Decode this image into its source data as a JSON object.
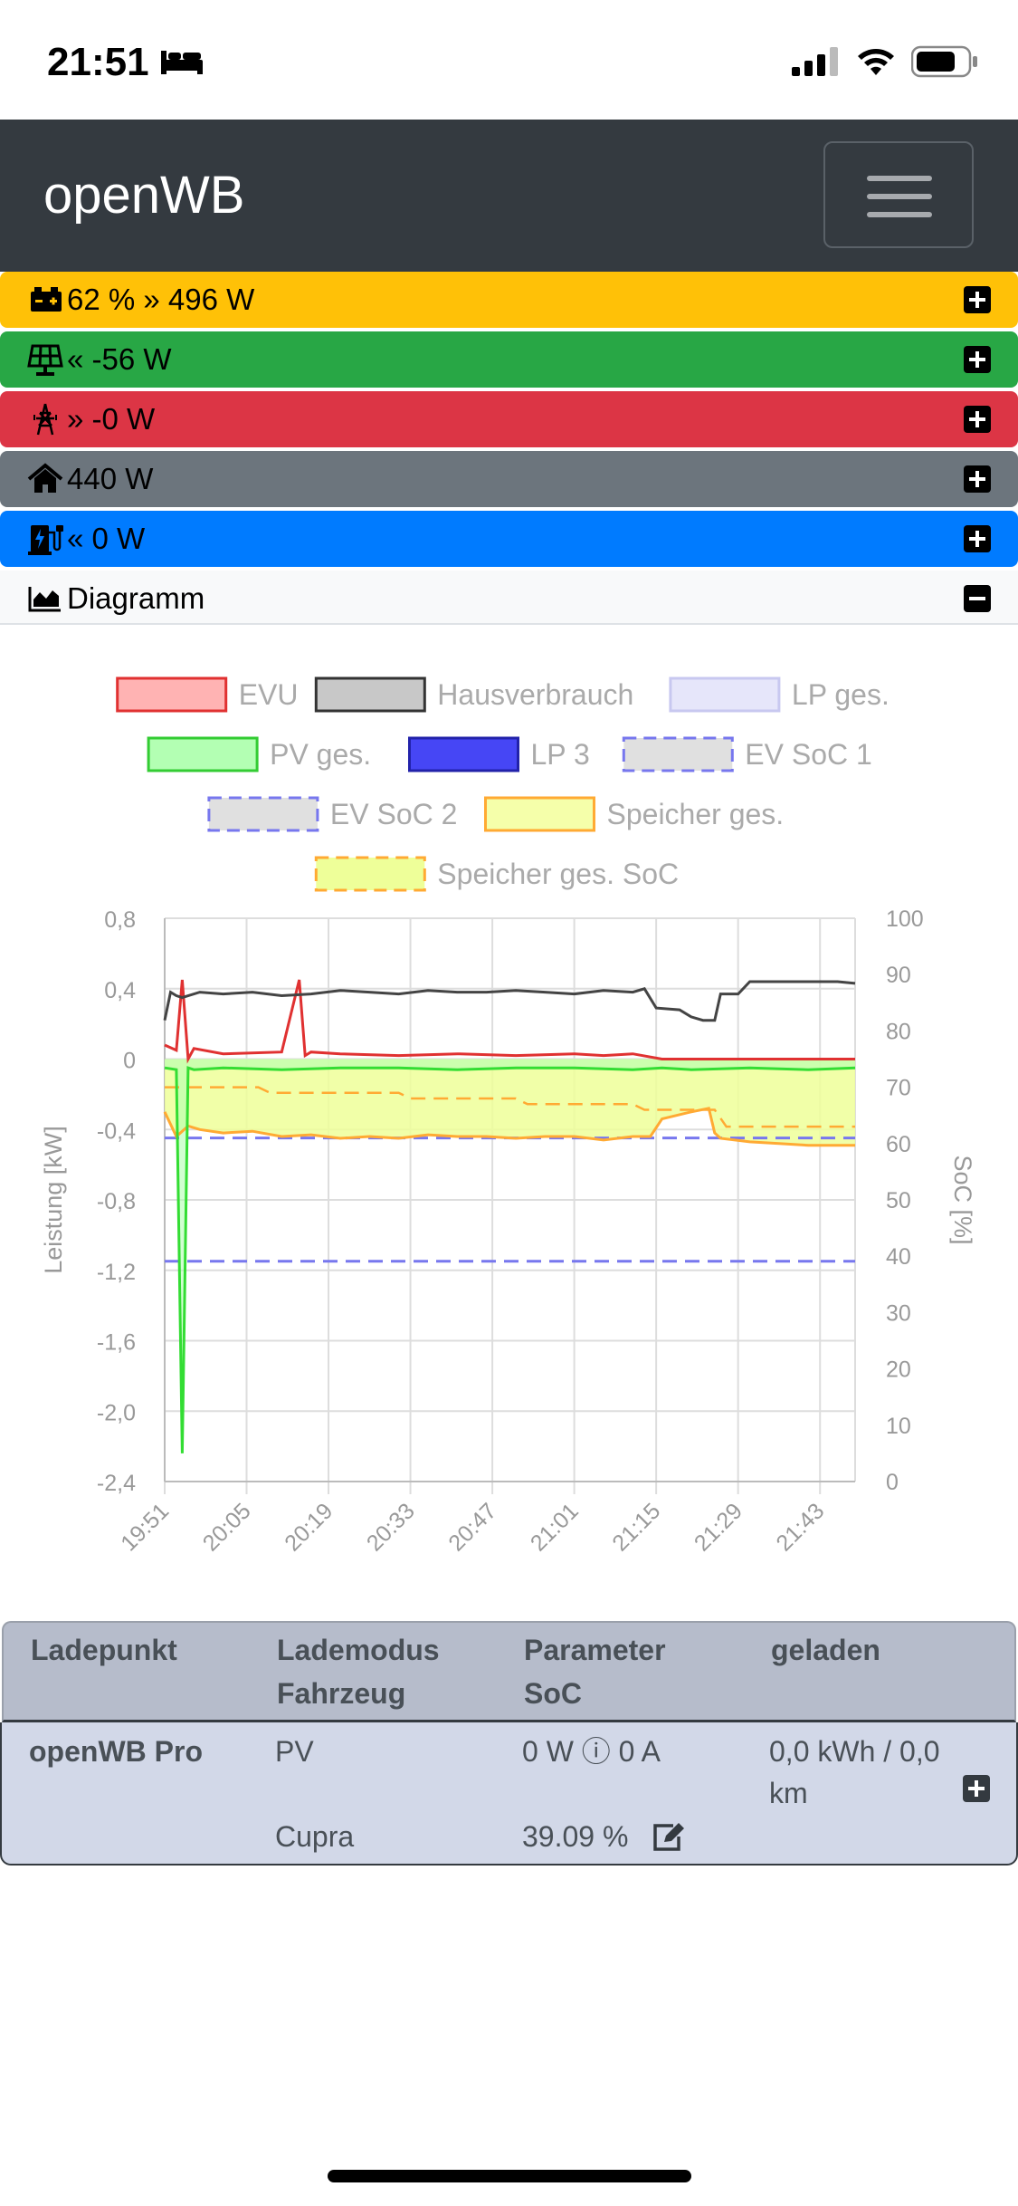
{
  "status_bar": {
    "time": "21:51"
  },
  "navbar": {
    "brand": "openWB"
  },
  "rows": {
    "battery": {
      "text": "62 % » 496 W",
      "color": "#ffc107"
    },
    "pv": {
      "text": "« -56 W",
      "color": "#28a745"
    },
    "evu": {
      "text": "» -0 W",
      "color": "#dc3545"
    },
    "house": {
      "text": "440 W",
      "color": "#6c757d"
    },
    "lp": {
      "text": "« 0 W",
      "color": "#007bff"
    }
  },
  "diagram": {
    "label": "Diagramm"
  },
  "chart_data": {
    "type": "line",
    "legend": [
      {
        "name": "EVU",
        "fill": "#ffb3b3",
        "stroke": "#e03131",
        "dashed": false
      },
      {
        "name": "Hausverbrauch",
        "fill": "#c8c8c8",
        "stroke": "#333333",
        "dashed": false
      },
      {
        "name": "LP ges.",
        "fill": "#e6e6fa",
        "stroke": "#c8c8f0",
        "dashed": false
      },
      {
        "name": "PV ges.",
        "fill": "#b3ffb3",
        "stroke": "#33cc33",
        "dashed": false
      },
      {
        "name": "LP 3",
        "fill": "#4646f5",
        "stroke": "#2222aa",
        "dashed": false
      },
      {
        "name": "EV SoC 1",
        "fill": "#e0e0e0",
        "stroke": "#7777ee",
        "dashed": true
      },
      {
        "name": "EV SoC 2",
        "fill": "#e0e0e0",
        "stroke": "#7777ee",
        "dashed": true
      },
      {
        "name": "Speicher ges.",
        "fill": "#f5ffaa",
        "stroke": "#ffaa33",
        "dashed": false
      },
      {
        "name": "Speicher ges. SoC",
        "fill": "#eeff99",
        "stroke": "#ffaa33",
        "dashed": true
      }
    ],
    "x_ticks": [
      "19:51",
      "20:05",
      "20:19",
      "20:33",
      "20:47",
      "21:01",
      "21:15",
      "21:29",
      "21:43"
    ],
    "y_left": {
      "label": "Leistung [kW]",
      "min": -2.4,
      "max": 0.8,
      "ticks": [
        "0,8",
        "0,4",
        "0",
        "-0,4",
        "-0,8",
        "-1,2",
        "-1,6",
        "-2,0",
        "-2,4"
      ]
    },
    "y_right": {
      "label": "SoC [%]",
      "min": 0,
      "max": 100,
      "ticks": [
        "100",
        "90",
        "80",
        "70",
        "60",
        "50",
        "40",
        "30",
        "20",
        "10",
        "0"
      ]
    },
    "x_range_minutes": [
      0,
      118
    ],
    "series": {
      "hausverbrauch": {
        "x": [
          0,
          1,
          2,
          3,
          6,
          10,
          15,
          20,
          25,
          30,
          35,
          40,
          45,
          50,
          55,
          60,
          65,
          70,
          75,
          80,
          82,
          84,
          88,
          90,
          92,
          94,
          95,
          96,
          98,
          100,
          105,
          110,
          115,
          118
        ],
        "y": [
          0.22,
          0.38,
          0.36,
          0.35,
          0.38,
          0.37,
          0.38,
          0.36,
          0.37,
          0.39,
          0.38,
          0.37,
          0.39,
          0.38,
          0.38,
          0.39,
          0.38,
          0.37,
          0.39,
          0.38,
          0.4,
          0.29,
          0.28,
          0.24,
          0.22,
          0.22,
          0.37,
          0.37,
          0.37,
          0.44,
          0.44,
          0.44,
          0.44,
          0.43
        ]
      },
      "evu": {
        "x": [
          0,
          2,
          3,
          4,
          5,
          10,
          20,
          23,
          24,
          25,
          30,
          40,
          50,
          60,
          70,
          75,
          80,
          85,
          90,
          100,
          110,
          118
        ],
        "y": [
          0.08,
          0.05,
          0.45,
          0.0,
          0.06,
          0.03,
          0.04,
          0.45,
          0.02,
          0.04,
          0.03,
          0.02,
          0.03,
          0.02,
          0.03,
          0.02,
          0.03,
          0.0,
          0.0,
          0.0,
          0.0,
          0.0
        ]
      },
      "pv": {
        "x": [
          0,
          2,
          3,
          4,
          5,
          10,
          20,
          30,
          40,
          50,
          60,
          70,
          80,
          85,
          90,
          100,
          110,
          118
        ],
        "y": [
          -0.05,
          -0.06,
          -2.24,
          -0.05,
          -0.06,
          -0.05,
          -0.06,
          -0.05,
          -0.05,
          -0.06,
          -0.05,
          -0.05,
          -0.06,
          -0.05,
          -0.06,
          -0.05,
          -0.06,
          -0.05
        ]
      },
      "speicher": {
        "x": [
          0,
          2,
          4,
          6,
          10,
          15,
          20,
          25,
          30,
          35,
          40,
          45,
          50,
          55,
          60,
          65,
          70,
          75,
          80,
          83,
          85,
          90,
          93,
          94,
          95,
          100,
          105,
          110,
          118
        ],
        "y": [
          -0.3,
          -0.44,
          -0.38,
          -0.4,
          -0.42,
          -0.41,
          -0.44,
          -0.43,
          -0.45,
          -0.44,
          -0.45,
          -0.43,
          -0.44,
          -0.44,
          -0.45,
          -0.44,
          -0.44,
          -0.46,
          -0.44,
          -0.44,
          -0.34,
          -0.3,
          -0.28,
          -0.42,
          -0.45,
          -0.47,
          -0.48,
          -0.49,
          -0.49
        ]
      },
      "speicher_soc": {
        "x": [
          0,
          2,
          4,
          16,
          18,
          40,
          42,
          60,
          62,
          80,
          82,
          94,
          96,
          118
        ],
        "y": [
          70,
          70,
          70,
          70,
          69,
          69,
          68,
          68,
          67,
          67,
          66,
          66,
          63,
          63
        ]
      },
      "ev_soc_1": {
        "x": [
          0,
          118
        ],
        "y": [
          61,
          61
        ]
      },
      "ev_soc_2": {
        "x": [
          0,
          118
        ],
        "y": [
          39.1,
          39.1
        ]
      }
    }
  },
  "table": {
    "headers": [
      [
        "Ladepunkt",
        ""
      ],
      [
        "Lademodus",
        "Fahrzeug"
      ],
      [
        "Parameter",
        "SoC"
      ],
      [
        "geladen",
        ""
      ]
    ],
    "row": {
      "ladepunkt": "openWB Pro",
      "lademodus": "PV",
      "fahrzeug": "Cupra",
      "parameter": "0 W ⓘ 0 A",
      "soc": "39.09 %",
      "geladen_1": "0,0 kWh / 0,0",
      "geladen_2": "km"
    }
  }
}
